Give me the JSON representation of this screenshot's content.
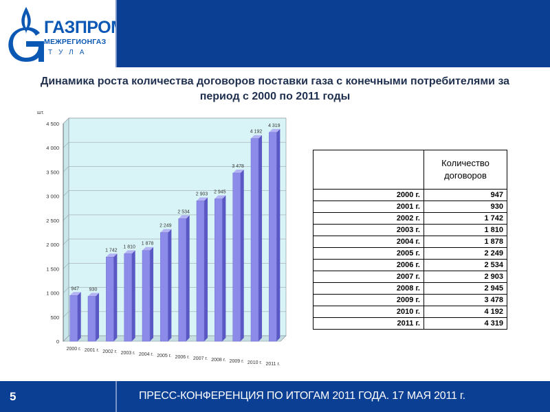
{
  "header": {
    "logo_name": "ГАЗПРОМ",
    "logo_sub": "МЕЖРЕГИОНГАЗ",
    "logo_city": "ТУЛА"
  },
  "slide_title": "Динамика роста количества договоров поставки газа с конечными потребителями за период с 2000 по 2011 годы",
  "chart_data": {
    "type": "bar",
    "unit_label": "шт.",
    "categories": [
      "2000 г.",
      "2001 г.",
      "2002 г.",
      "2003 г.",
      "2004 г.",
      "2005 г.",
      "2006 г.",
      "2007 г.",
      "2008 г.",
      "2009 г.",
      "2010 г.",
      "2011 г."
    ],
    "values": [
      947,
      930,
      1742,
      1810,
      1878,
      2249,
      2534,
      2903,
      2945,
      3478,
      4192,
      4319
    ],
    "value_labels": [
      "947",
      "930",
      "1 742",
      "1 810",
      "1 878",
      "2 249",
      "2 534",
      "2 903",
      "2 945",
      "3 478",
      "4 192",
      "4 319"
    ],
    "yticks": [
      0,
      500,
      1000,
      1500,
      2000,
      2500,
      3000,
      3500,
      4000,
      4500
    ],
    "ytick_labels": [
      "0",
      "500",
      "1 000",
      "1 500",
      "2 000",
      "2 500",
      "3 000",
      "3 500",
      "4 000",
      "4 500"
    ],
    "ylim": [
      0,
      4500
    ],
    "grid": true,
    "colors": {
      "bar": "#8d8bea",
      "bar_dark": "#5a58c4",
      "plot_bg": "#d8f4f6",
      "grid": "#9aa6b0"
    }
  },
  "table": {
    "header": "Количество договоров",
    "rows": [
      {
        "year": "2000 г.",
        "value": "947"
      },
      {
        "year": "2001 г.",
        "value": "930"
      },
      {
        "year": "2002 г.",
        "value": "1 742"
      },
      {
        "year": "2003 г.",
        "value": "1 810"
      },
      {
        "year": "2004 г.",
        "value": "1 878"
      },
      {
        "year": "2005 г.",
        "value": "2 249"
      },
      {
        "year": "2006 г.",
        "value": "2 534"
      },
      {
        "year": "2007 г.",
        "value": "2 903"
      },
      {
        "year": "2008 г.",
        "value": "2 945"
      },
      {
        "year": "2009 г.",
        "value": "3 478"
      },
      {
        "year": "2010 г.",
        "value": "4 192"
      },
      {
        "year": "2011 г.",
        "value": "4 319"
      }
    ]
  },
  "footer": {
    "page_number": "5",
    "text": "ПРЕСС-КОНФЕРЕНЦИЯ ПО ИТОГАМ 2011 ГОДА. 17 МАЯ 2011 г."
  },
  "colors": {
    "brand_blue": "#0b3f94",
    "logo_blue": "#0b58b4"
  }
}
